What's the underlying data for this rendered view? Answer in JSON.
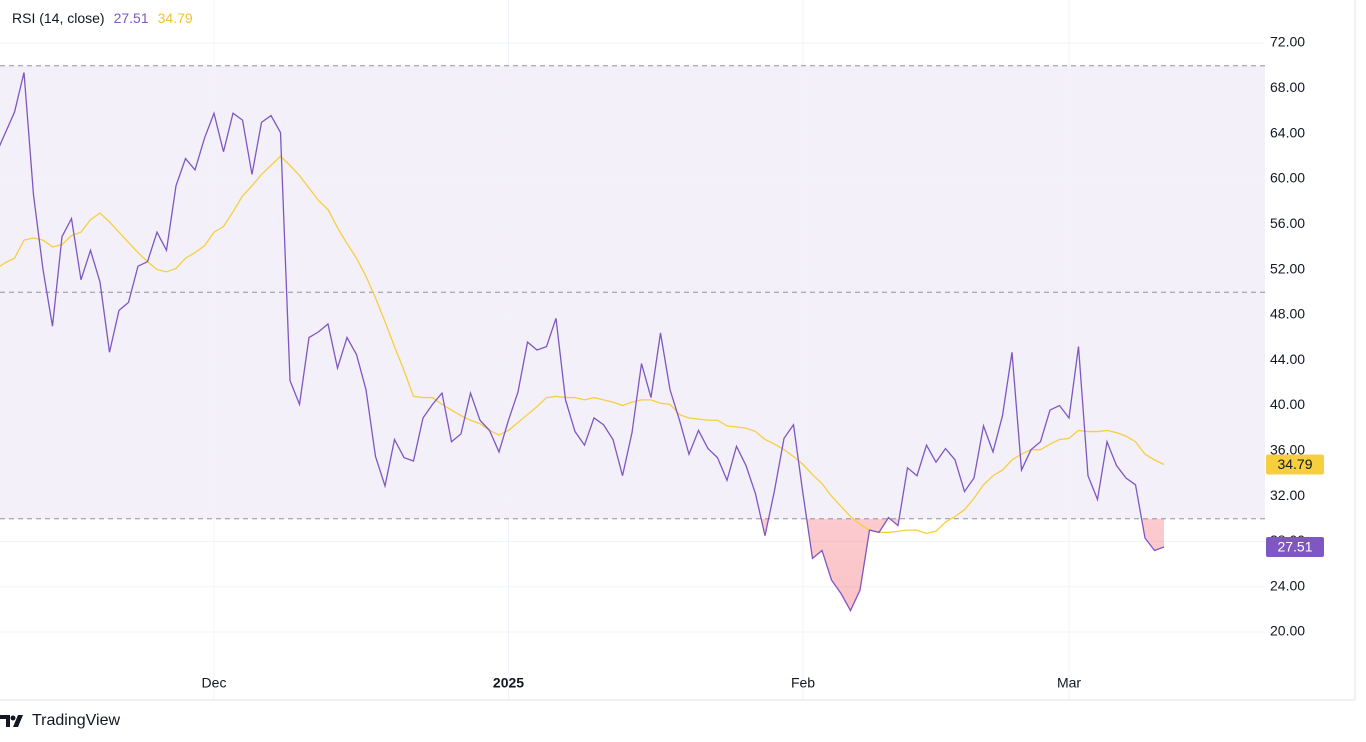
{
  "chart_data": {
    "type": "line",
    "title": "RSI (14, close)",
    "watermark": "TradingView",
    "categories": [
      null,
      null,
      null,
      null,
      null,
      null,
      null,
      null,
      null,
      null,
      null,
      null,
      null,
      null,
      null,
      null,
      null,
      null,
      null,
      null,
      null,
      null,
      null,
      "Dec",
      null,
      null,
      null,
      null,
      null,
      null,
      null,
      null,
      null,
      null,
      null,
      null,
      null,
      null,
      null,
      null,
      null,
      null,
      null,
      null,
      null,
      null,
      null,
      null,
      null,
      null,
      null,
      null,
      null,
      null,
      "2025",
      null,
      null,
      null,
      null,
      null,
      null,
      null,
      null,
      null,
      null,
      null,
      null,
      null,
      null,
      null,
      null,
      null,
      null,
      null,
      null,
      null,
      null,
      null,
      null,
      null,
      null,
      null,
      null,
      null,
      null,
      "Feb",
      null,
      null,
      null,
      null,
      null,
      null,
      null,
      null,
      null,
      null,
      null,
      null,
      null,
      null,
      null,
      null,
      null,
      null,
      null,
      null,
      null,
      null,
      null,
      null,
      null,
      null,
      null,
      "Mar",
      null,
      null,
      null,
      null,
      null,
      null,
      null,
      null,
      null,
      null
    ],
    "series": [
      {
        "color": "#7e57c2",
        "values": [
          62.1,
          64.0,
          65.9,
          69.4,
          58.6,
          52.0,
          47.0,
          54.9,
          56.5,
          51.1,
          53.7,
          50.9,
          44.7,
          48.4,
          49.1,
          52.3,
          52.7,
          55.3,
          53.7,
          59.4,
          61.8,
          60.8,
          63.6,
          65.8,
          62.4,
          65.8,
          65.2,
          60.4,
          65.0,
          65.6,
          64.1,
          42.2,
          40.1,
          46.0,
          46.5,
          47.2,
          43.3,
          46.0,
          44.5,
          41.4,
          35.5,
          32.9,
          37.0,
          35.4,
          35.1,
          38.9,
          40.1,
          41.1,
          36.8,
          37.5,
          41.1,
          38.7,
          37.8,
          35.9,
          38.7,
          41.2,
          45.6,
          44.9,
          45.2,
          47.7,
          40.5,
          37.7,
          36.5,
          38.9,
          38.3,
          37.0,
          33.8,
          37.6,
          43.7,
          40.7,
          46.4,
          41.4,
          38.7,
          35.7,
          37.8,
          36.2,
          35.4,
          33.4,
          36.4,
          34.7,
          32.2,
          28.5,
          32.5,
          37.1,
          38.3,
          32.2,
          26.5,
          27.2,
          24.6,
          23.4,
          21.9,
          23.7,
          29.0,
          28.8,
          30.1,
          29.4,
          34.5,
          33.8,
          36.5,
          35.0,
          36.2,
          35.2,
          32.4,
          33.6,
          38.2,
          35.9,
          39.1,
          44.7,
          34.3,
          36.1,
          36.8,
          39.6,
          40.0,
          38.9,
          45.2,
          33.8,
          31.7,
          36.8,
          34.7,
          33.6,
          33.0,
          28.3,
          27.2,
          27.51
        ]
      },
      {
        "color": "#f7cf3e",
        "values": [
          52.0,
          52.6,
          53.0,
          54.6,
          54.8,
          54.6,
          54.0,
          54.2,
          55.0,
          55.3,
          56.4,
          57.0,
          56.2,
          55.3,
          54.4,
          53.5,
          52.7,
          52.0,
          51.8,
          52.1,
          53.0,
          53.5,
          54.1,
          55.3,
          55.8,
          57.1,
          58.5,
          59.4,
          60.4,
          61.2,
          62.0,
          61.2,
          60.3,
          59.2,
          58.1,
          57.3,
          55.7,
          54.3,
          53.0,
          51.4,
          49.5,
          47.4,
          45.2,
          43.1,
          40.8,
          40.7,
          40.7,
          40.1,
          39.6,
          39.1,
          38.7,
          38.4,
          37.8,
          37.4,
          37.8,
          38.5,
          39.2,
          39.9,
          40.7,
          40.8,
          40.7,
          40.7,
          40.5,
          40.7,
          40.5,
          40.3,
          40.0,
          40.3,
          40.5,
          40.5,
          40.2,
          40.1,
          39.2,
          38.9,
          38.8,
          38.7,
          38.7,
          38.2,
          38.1,
          38.0,
          37.7,
          37.0,
          36.6,
          36.1,
          35.5,
          34.8,
          33.9,
          33.1,
          32.0,
          31.1,
          30.2,
          29.5,
          29.0,
          28.8,
          28.8,
          28.9,
          29.0,
          29.0,
          28.7,
          28.9,
          29.7,
          30.2,
          30.8,
          31.8,
          33.0,
          33.8,
          34.3,
          35.2,
          35.7,
          36.1,
          36.1,
          36.6,
          37.0,
          37.1,
          37.8,
          37.7,
          37.7,
          37.8,
          37.6,
          37.3,
          36.8,
          35.7,
          35.2,
          34.79
        ]
      }
    ],
    "ylim": [
      14.0,
      75.8
    ],
    "yticks": [
      {
        "value": 20,
        "label": "20.00"
      },
      {
        "value": 24,
        "label": "24.00"
      },
      {
        "value": 28,
        "label": "28.00"
      },
      {
        "value": 32,
        "label": "32.00"
      },
      {
        "value": 36,
        "label": "36.00"
      },
      {
        "value": 40,
        "label": "40.00"
      },
      {
        "value": 44,
        "label": "44.00"
      },
      {
        "value": 48,
        "label": "48.00"
      },
      {
        "value": 52,
        "label": "52.00"
      },
      {
        "value": 56,
        "label": "56.00"
      },
      {
        "value": 60,
        "label": "60.00"
      },
      {
        "value": 64,
        "label": "64.00"
      },
      {
        "value": 68,
        "label": "68.00"
      },
      {
        "value": 72,
        "label": "72.00"
      }
    ],
    "levels": [
      70,
      50,
      30
    ],
    "band_color": "#7e57c2",
    "oversold_color": "#f23645",
    "grid": true
  }
}
